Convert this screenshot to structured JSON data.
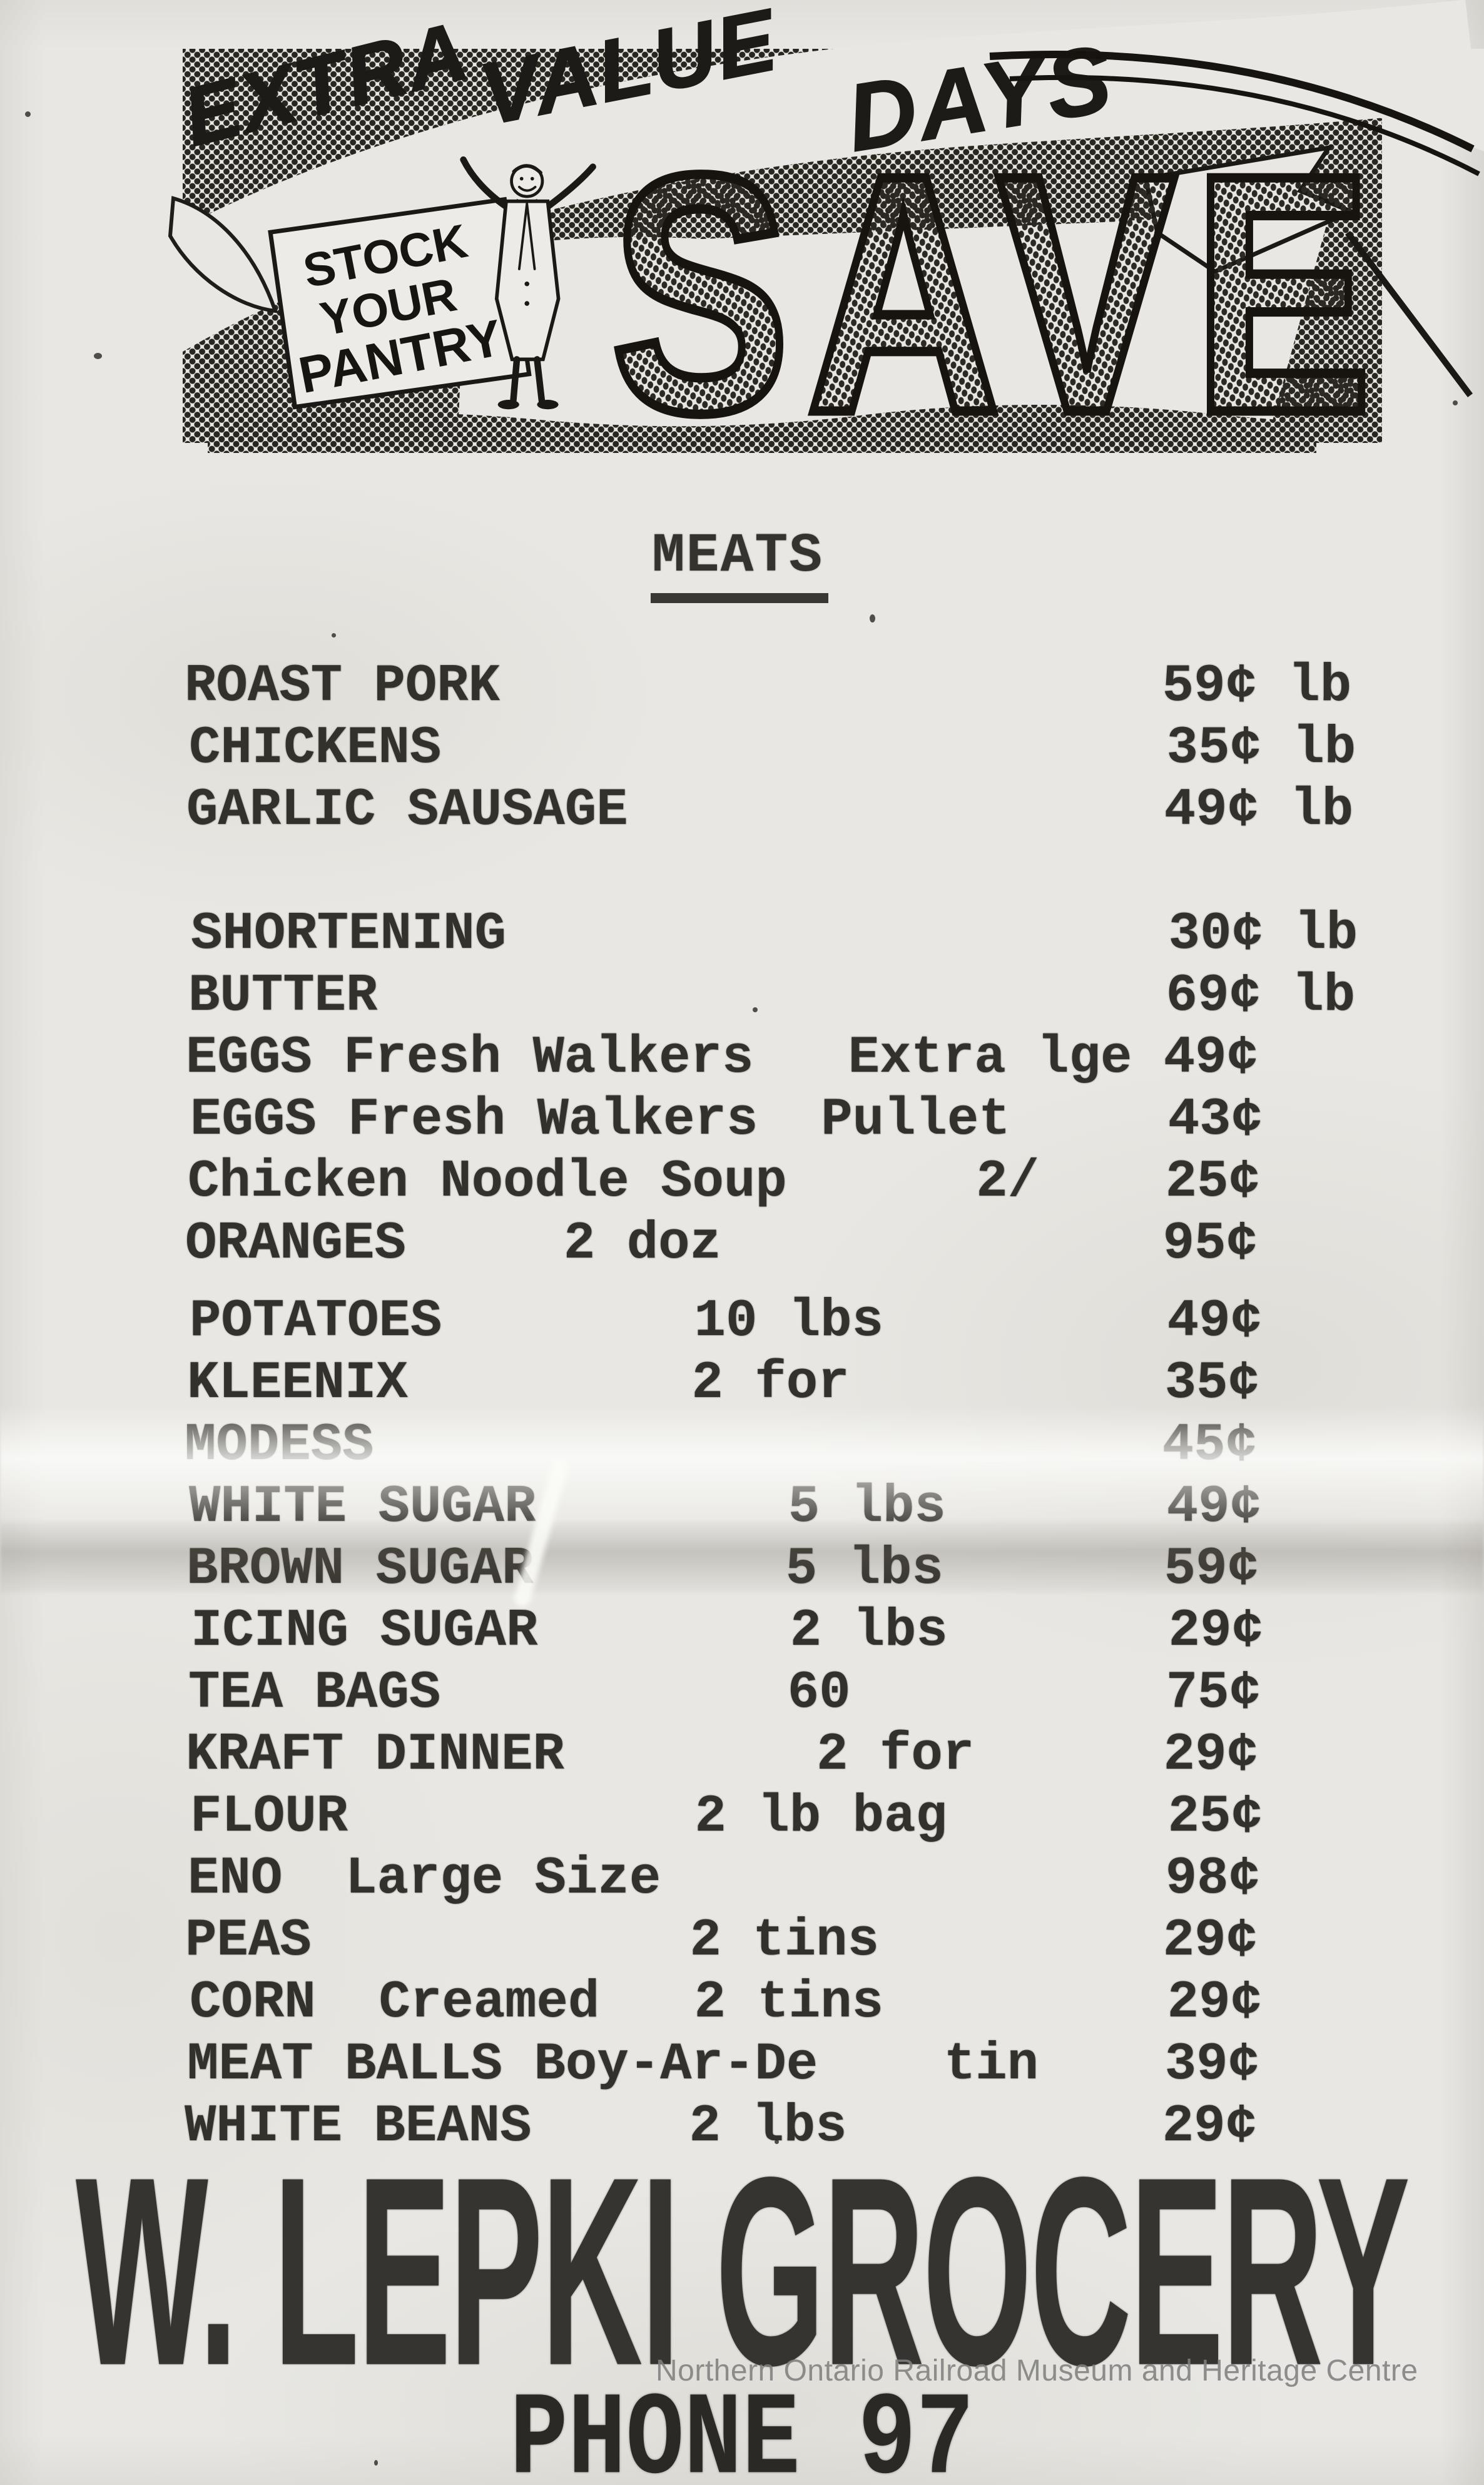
{
  "banner": {
    "tagline_words": [
      "EXTRA",
      "VALUE",
      "DAYS"
    ],
    "sign_lines": [
      "STOCK",
      "YOUR",
      "PANTRY!"
    ],
    "save_text": "SAVE"
  },
  "section_heading": "MEATS",
  "price_list": {
    "items": [
      {
        "name": "ROAST PORK",
        "price": "59¢",
        "unit": "lb"
      },
      {
        "name": "CHICKENS",
        "price": "35¢",
        "unit": "lb"
      },
      {
        "name": "GARLIC SAUSAGE",
        "price": "49¢",
        "unit": "lb"
      },
      {
        "name": "SHORTENING",
        "price": "30¢",
        "unit": "lb",
        "blank_lines_before": 1
      },
      {
        "name": "BUTTER",
        "price": "69¢",
        "unit": "lb"
      },
      {
        "name": "EGGS",
        "desc": "Fresh Walkers",
        "desc_col": 5,
        "qty": "Extra lge",
        "qty_col": 21,
        "price": "49¢"
      },
      {
        "name": "EGGS",
        "desc": "Fresh Walkers",
        "desc_col": 5,
        "qty": "Pullet",
        "qty_col": 20,
        "price": "43¢"
      },
      {
        "name": "Chicken Noodle Soup",
        "qty": "2/",
        "qty_col": 25,
        "price": "25¢"
      },
      {
        "name": "ORANGES",
        "qty": "2 doz",
        "qty_col": 12,
        "price": "95¢"
      },
      {
        "name": "POTATOES",
        "qty": "10 lbs",
        "qty_col": 16,
        "price": "49¢",
        "blank_lines_before": 0.25
      },
      {
        "name": "KLEENIX",
        "qty": "2 for",
        "qty_col": 16,
        "price": "35¢"
      },
      {
        "name": "MODESS",
        "price": "45¢"
      },
      {
        "name": "WHITE SUGAR",
        "qty": "5 lbs",
        "qty_col": 19,
        "price": "49¢"
      },
      {
        "name": "BROWN SUGAR",
        "qty": "5 lbs",
        "qty_col": 19,
        "price": "59¢"
      },
      {
        "name": "ICING SUGAR",
        "qty": "2 lbs",
        "qty_col": 19,
        "price": "29¢"
      },
      {
        "name": "TEA BAGS",
        "qty": "60",
        "qty_col": 19,
        "price": "75¢"
      },
      {
        "name": "KRAFT DINNER",
        "qty": "2 for",
        "qty_col": 20,
        "price": "29¢"
      },
      {
        "name": "FLOUR",
        "qty": "2 lb bag",
        "qty_col": 16,
        "price": "25¢"
      },
      {
        "name": "ENO",
        "desc": "Large Size",
        "desc_col": 5,
        "price": "98¢"
      },
      {
        "name": "PEAS",
        "qty": "2 tins",
        "qty_col": 16,
        "price": "29¢"
      },
      {
        "name": "CORN",
        "desc": "Creamed",
        "desc_col": 6,
        "qty": "2 tins",
        "qty_col": 16,
        "price": "29¢"
      },
      {
        "name": "MEAT BALLS",
        "desc": "Boy-Ar-De",
        "desc_col": 11,
        "qty": "tin",
        "qty_col": 24,
        "price": "39¢"
      },
      {
        "name": "WHITE BEANS",
        "qty": "2 lbs",
        "qty_col": 16,
        "price": "29¢"
      }
    ]
  },
  "store": {
    "name": "W. LEPKI GROCERY",
    "phone_line": "PHONE 97"
  },
  "watermark": "Northern Ontario Railroad Museum and Heritage Centre",
  "colors": {
    "paper": "#e8e7e3",
    "typewriter_ink": "#33312b",
    "banner_ink": "#1f1d19",
    "headline_ink": "#363430",
    "watermark_gray": "#7f7f7f"
  }
}
